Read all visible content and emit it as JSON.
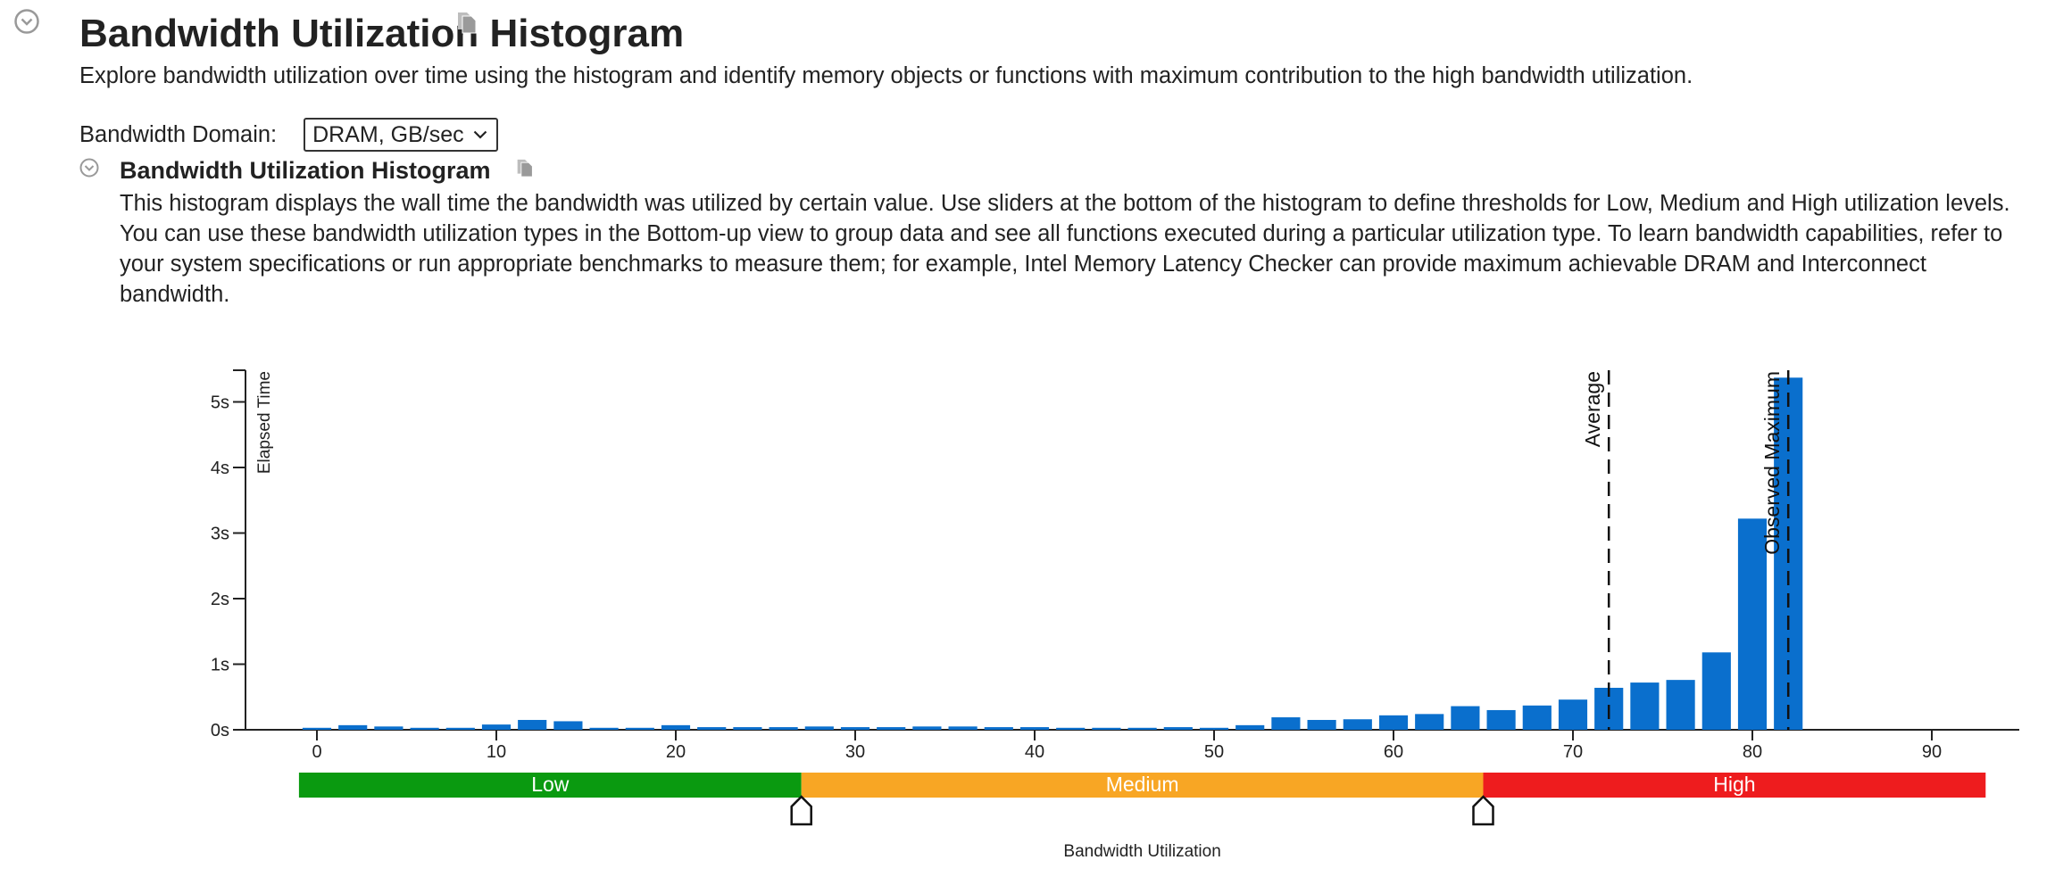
{
  "section": {
    "title": "Bandwidth Utilization Histogram",
    "description": "Explore bandwidth utilization over time using the histogram and identify memory objects or functions with maximum contribution to the high bandwidth utilization."
  },
  "domain": {
    "label": "Bandwidth Domain:",
    "selected": "DRAM, GB/sec"
  },
  "subsection": {
    "title": "Bandwidth Utilization Histogram",
    "description": "This histogram displays the wall time the bandwidth was utilized by certain value. Use sliders at the bottom of the histogram to define thresholds for Low, Medium and High utilization levels. You can use these bandwidth utilization types in the Bottom-up view to group data and see all functions executed during a particular utilization type. To learn bandwidth capabilities, refer to your system specifications or run appropriate benchmarks to measure them; for example, Intel Memory Latency Checker can provide maximum achievable DRAM and Interconnect bandwidth."
  },
  "icons": {
    "collapse": "chevron-circle-icon",
    "copy": "copy-icon"
  },
  "colors": {
    "bar": "#0a6fcd",
    "low": "#0a9a10",
    "medium": "#f8a624",
    "high": "#ee1c1e"
  },
  "chart_data": {
    "type": "bar",
    "xlabel": "Bandwidth Utilization",
    "ylabel": "Elapsed Time",
    "xlim": [
      -1,
      95
    ],
    "ylim": [
      0,
      5.5
    ],
    "x_ticks": [
      0,
      10,
      20,
      30,
      40,
      50,
      60,
      70,
      80,
      90
    ],
    "y_ticks": [
      0,
      1,
      2,
      3,
      4,
      5
    ],
    "y_tick_labels": [
      "0s",
      "1s",
      "2s",
      "3s",
      "4s",
      "5s"
    ],
    "bin_width": 2,
    "x": [
      0,
      2,
      4,
      6,
      8,
      10,
      12,
      14,
      16,
      18,
      20,
      22,
      24,
      26,
      28,
      30,
      32,
      34,
      36,
      38,
      40,
      42,
      44,
      46,
      48,
      50,
      52,
      54,
      56,
      58,
      60,
      62,
      64,
      66,
      68,
      70,
      72,
      74,
      76,
      78,
      80,
      82
    ],
    "values": [
      0.03,
      0.07,
      0.05,
      0.03,
      0.03,
      0.08,
      0.15,
      0.13,
      0.03,
      0.03,
      0.07,
      0.04,
      0.04,
      0.04,
      0.05,
      0.04,
      0.04,
      0.05,
      0.05,
      0.04,
      0.04,
      0.03,
      0.03,
      0.03,
      0.04,
      0.03,
      0.07,
      0.19,
      0.15,
      0.16,
      0.22,
      0.24,
      0.36,
      0.3,
      0.37,
      0.46,
      0.64,
      0.72,
      0.76,
      1.18,
      3.22,
      5.37
    ],
    "markers": [
      {
        "label": "Average",
        "x": 72
      },
      {
        "label": "Observed Maximum",
        "x": 82
      }
    ],
    "thresholds": {
      "range": [
        -1,
        93
      ],
      "low_max": 27,
      "medium_max": 65,
      "labels": [
        "Low",
        "Medium",
        "High"
      ]
    }
  }
}
